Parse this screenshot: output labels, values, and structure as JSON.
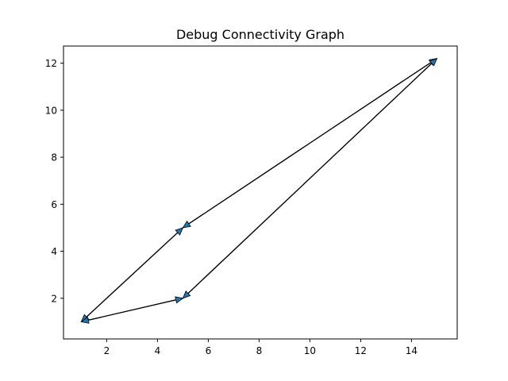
{
  "chart_data": {
    "type": "line",
    "title": "Debug Connectivity Graph",
    "xlabel": "",
    "ylabel": "",
    "xlim": [
      0.3,
      15.8
    ],
    "ylim": [
      0.27,
      12.73
    ],
    "xticks": [
      2,
      4,
      6,
      8,
      10,
      12,
      14
    ],
    "yticks": [
      2,
      4,
      6,
      8,
      10,
      12
    ],
    "grid": false,
    "nodes": [
      {
        "x": 1,
        "y": 1
      },
      {
        "x": 5,
        "y": 5
      },
      {
        "x": 5,
        "y": 2
      },
      {
        "x": 15,
        "y": 12.2
      }
    ],
    "edges": [
      {
        "from": [
          1,
          1
        ],
        "to": [
          5,
          5
        ]
      },
      {
        "from": [
          5,
          5
        ],
        "to": [
          1,
          1
        ]
      },
      {
        "from": [
          5,
          5
        ],
        "to": [
          15,
          12.2
        ]
      },
      {
        "from": [
          15,
          12.2
        ],
        "to": [
          5,
          5
        ]
      },
      {
        "from": [
          1,
          1
        ],
        "to": [
          5,
          2
        ]
      },
      {
        "from": [
          5,
          2
        ],
        "to": [
          1,
          1
        ]
      },
      {
        "from": [
          5,
          2
        ],
        "to": [
          15,
          12.2
        ]
      },
      {
        "from": [
          15,
          12.2
        ],
        "to": [
          5,
          2
        ]
      }
    ],
    "arrow_color": "#1f77b4",
    "line_color": "#000000"
  }
}
